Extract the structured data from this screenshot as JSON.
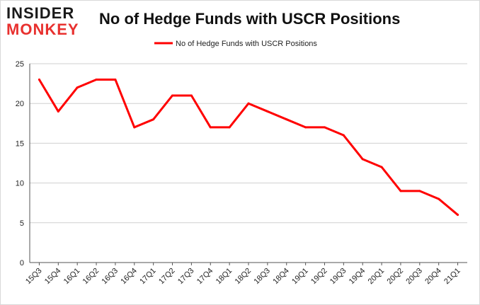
{
  "brand": {
    "line1": "INSIDER",
    "line2": "MONKEY"
  },
  "chart_data": {
    "type": "line",
    "title": "No of Hedge Funds with USCR Positions",
    "xlabel": "",
    "ylabel": "",
    "ylim": [
      0,
      25
    ],
    "yticks": [
      0,
      5,
      10,
      15,
      20,
      25
    ],
    "grid": true,
    "legend_position": "top-center",
    "categories": [
      "15Q3",
      "15Q4",
      "16Q1",
      "16Q2",
      "16Q3",
      "16Q4",
      "17Q1",
      "17Q2",
      "17Q3",
      "17Q4",
      "18Q1",
      "18Q2",
      "18Q3",
      "18Q4",
      "19Q1",
      "19Q2",
      "19Q3",
      "19Q4",
      "20Q1",
      "20Q2",
      "20Q3",
      "20Q4",
      "21Q1"
    ],
    "series": [
      {
        "name": "No of Hedge Funds with USCR Positions",
        "color": "#ff0000",
        "values": [
          23,
          19,
          22,
          23,
          23,
          17,
          18,
          21,
          21,
          17,
          17,
          20,
          19,
          18,
          17,
          17,
          16,
          13,
          12,
          9,
          9,
          8,
          6
        ]
      }
    ]
  }
}
